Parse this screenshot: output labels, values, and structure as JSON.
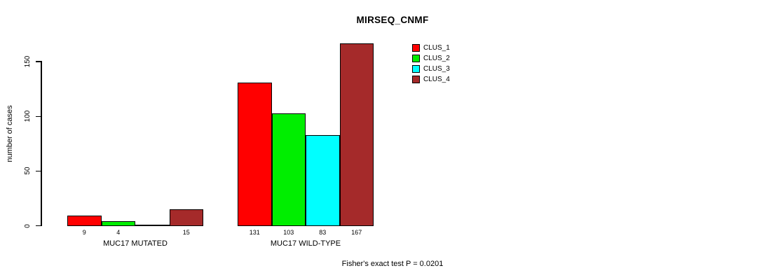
{
  "chart_data": {
    "type": "bar",
    "title": "MIRSEQ_CNMF",
    "ylabel": "number of cases",
    "xlabel": "",
    "ylim": [
      0,
      167
    ],
    "yticks": [
      0,
      50,
      100,
      150
    ],
    "grid": false,
    "legend_position": "top-right",
    "categories": [
      "MUC17 MUTATED",
      "MUC17 WILD-TYPE"
    ],
    "series": [
      {
        "name": "CLUS_1",
        "color": "#ff0000",
        "values": [
          9,
          131
        ]
      },
      {
        "name": "CLUS_2",
        "color": "#00ee00",
        "values": [
          4,
          103
        ]
      },
      {
        "name": "CLUS_3",
        "color": "#00ffff",
        "values": [
          0,
          83
        ]
      },
      {
        "name": "CLUS_4",
        "color": "#a52a2a",
        "values": [
          15,
          167
        ]
      }
    ],
    "bar_value_labels": [
      [
        "9",
        "4",
        "",
        "15"
      ],
      [
        "131",
        "103",
        "83",
        "167"
      ]
    ],
    "annotation": "Fisher's exact test P = 0.0201"
  },
  "colors": {
    "background": "#ffffff",
    "axis": "#000000",
    "text": "#000000"
  }
}
